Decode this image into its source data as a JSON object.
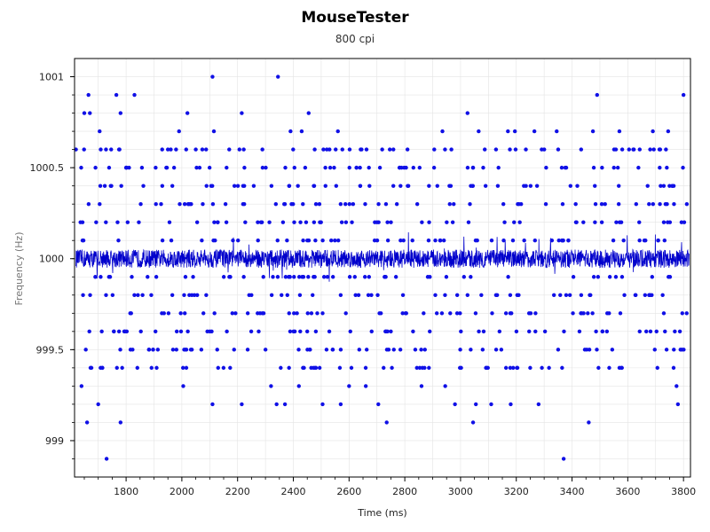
{
  "title": "MouseTester",
  "subtitle": "800 cpi",
  "chart_data": {
    "type": "scatter",
    "title": "MouseTester",
    "subtitle": "800 cpi",
    "xlabel": "Time (ms)",
    "ylabel": "Frequency (Hz)",
    "xlim": [
      1615,
      3825
    ],
    "ylim": [
      998.8,
      1001.1
    ],
    "x_ticks": [
      1800,
      2000,
      2200,
      2400,
      2600,
      2800,
      3000,
      3200,
      3400,
      3600,
      3800
    ],
    "x_tick_labels": [
      "1800",
      "2000",
      "2200",
      "2400",
      "2600",
      "2800",
      "3000",
      "3200",
      "3400",
      "3600",
      "3800"
    ],
    "y_ticks": [
      999,
      999.5,
      1000,
      1000.5,
      1001
    ],
    "y_tick_labels": [
      "999",
      "999.5",
      "1000",
      "1000.5",
      "1001"
    ],
    "grid": true,
    "colors": {
      "points": "#1010e6",
      "line": "#0000cc",
      "grid": "#e4e4e4",
      "axis": "#000000"
    },
    "series": [
      {
        "type": "scatter",
        "marker": "dot",
        "value_levels": [
          998.9,
          999.1,
          999.2,
          999.3,
          999.4,
          999.5,
          999.6,
          999.7,
          999.8,
          999.9,
          1000.0,
          1000.1,
          1000.2,
          1000.3,
          1000.4,
          1000.5,
          1000.6,
          1000.7,
          1000.8,
          1000.9,
          1001.0
        ],
        "points": [
          [
            1620,
            1000.6
          ],
          [
            1640,
            999.3
          ],
          [
            1650,
            1000.8
          ],
          [
            1660,
            999.1
          ],
          [
            1665,
            1000.9
          ],
          [
            1670,
            1000.8
          ],
          [
            1700,
            999.2
          ],
          [
            1705,
            1000.7
          ],
          [
            1730,
            998.9
          ],
          [
            1765,
            1000.9
          ],
          [
            1780,
            999.1
          ],
          [
            1780,
            1000.8
          ],
          [
            1800,
            1000.5
          ],
          [
            1830,
            1000.9
          ],
          [
            1950,
            1000.6
          ],
          [
            1990,
            1000.7
          ],
          [
            2005,
            999.3
          ],
          [
            2020,
            1000.8
          ],
          [
            2110,
            1001.0
          ],
          [
            2110,
            999.2
          ],
          [
            2115,
            1000.7
          ],
          [
            2170,
            1000.6
          ],
          [
            2215,
            999.2
          ],
          [
            2215,
            1000.8
          ],
          [
            2320,
            999.3
          ],
          [
            2340,
            999.2
          ],
          [
            2345,
            1001.0
          ],
          [
            2370,
            999.2
          ],
          [
            2390,
            1000.7
          ],
          [
            2420,
            999.3
          ],
          [
            2430,
            1000.7
          ],
          [
            2455,
            1000.8
          ],
          [
            2505,
            999.2
          ],
          [
            2560,
            1000.7
          ],
          [
            2570,
            999.2
          ],
          [
            2600,
            999.3
          ],
          [
            2660,
            999.3
          ],
          [
            2705,
            999.2
          ],
          [
            2735,
            999.1
          ],
          [
            2860,
            999.3
          ],
          [
            2935,
            1000.7
          ],
          [
            2945,
            999.3
          ],
          [
            2980,
            999.2
          ],
          [
            3025,
            1000.8
          ],
          [
            3045,
            999.1
          ],
          [
            3055,
            999.2
          ],
          [
            3065,
            1000.7
          ],
          [
            3110,
            999.2
          ],
          [
            3170,
            1000.7
          ],
          [
            3180,
            999.2
          ],
          [
            3195,
            1000.7
          ],
          [
            3265,
            1000.7
          ],
          [
            3280,
            999.2
          ],
          [
            3345,
            1000.7
          ],
          [
            3370,
            998.9
          ],
          [
            3460,
            999.1
          ],
          [
            3475,
            1000.7
          ],
          [
            3490,
            1000.9
          ],
          [
            3570,
            1000.7
          ],
          [
            3690,
            1000.7
          ],
          [
            3745,
            1000.7
          ],
          [
            3775,
            999.3
          ],
          [
            3780,
            999.2
          ],
          [
            3800,
            1000.9
          ]
        ],
        "dense_bands": {
          "levels": [
            999.4,
            999.5,
            999.6,
            999.7,
            999.8,
            999.9,
            1000.1,
            1000.2,
            1000.3,
            1000.4,
            1000.5,
            1000.6
          ],
          "x_range": [
            1625,
            3820
          ],
          "note_count_per_level": 55
        }
      },
      {
        "type": "line",
        "center": 1000.0,
        "typical_amplitude": 0.05,
        "max_amplitude": 0.15,
        "x_range": [
          1620,
          3820
        ]
      }
    ]
  }
}
